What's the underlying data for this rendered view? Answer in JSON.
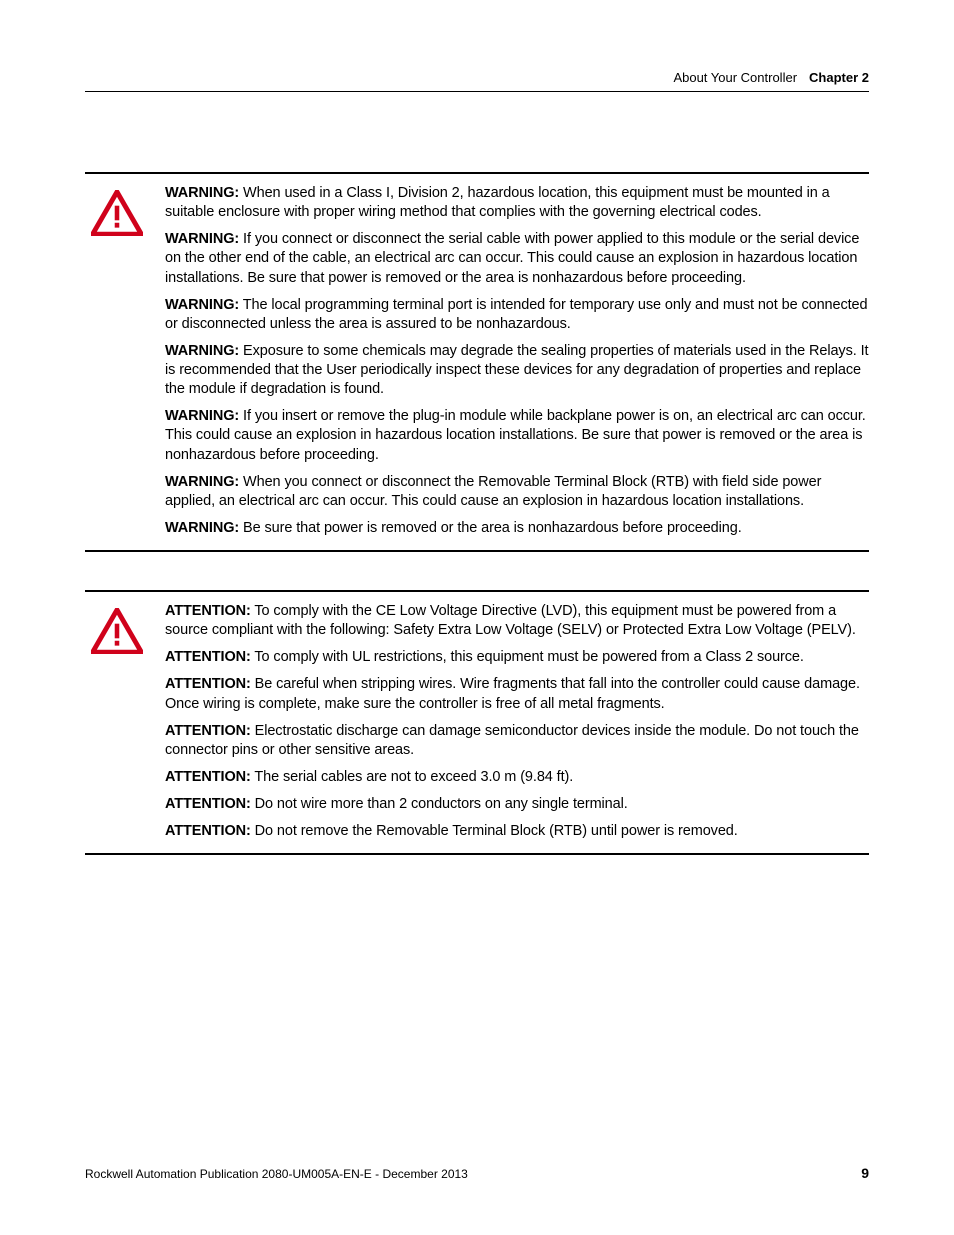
{
  "header": {
    "section_title": "About Your Controller",
    "chapter_label": "Chapter 2"
  },
  "blocks": [
    {
      "icon": "warning-triangle",
      "icon_color": "#d0021b",
      "label": "WARNING:",
      "items": [
        "When used in a Class I, Division 2, hazardous location, this equipment must be mounted in a suitable enclosure with proper wiring method that complies with the governing electrical codes.",
        "If you connect or disconnect the serial cable with power applied to this module or the serial device on the other end of the cable, an electrical arc can occur. This could cause an explosion in hazardous location installations. Be sure that power is removed or the area is nonhazardous before proceeding.",
        "The local programming terminal port is intended for temporary use only and must not be connected or disconnected unless the area is assured to be nonhazardous.",
        "Exposure to some chemicals may degrade the sealing properties of materials used in the Relays. It is recommended that the User periodically inspect these devices for any degradation of properties and replace the module if degradation is found.",
        "If you insert or remove the plug-in module while backplane power is on, an electrical arc can occur. This could cause an explosion in hazardous location installations. Be sure that power is removed or the area is nonhazardous before proceeding.",
        "When you connect or disconnect the Removable Terminal Block (RTB) with field side power applied, an electrical arc can occur. This could cause an explosion in hazardous location installations.",
        "Be sure that power is removed or the area is nonhazardous before proceeding."
      ]
    },
    {
      "icon": "warning-triangle",
      "icon_color": "#d0021b",
      "label": "ATTENTION:",
      "items": [
        "To comply with the CE Low Voltage Directive (LVD), this equipment must be powered from a source compliant with the following: Safety Extra Low Voltage (SELV) or Protected Extra Low Voltage (PELV).",
        "To comply with UL restrictions, this equipment must be powered from a Class 2 source.",
        "Be careful when stripping wires. Wire fragments that fall into the controller could cause damage. Once wiring is complete, make sure the controller is free of all metal fragments.",
        "Electrostatic discharge can damage semiconductor devices inside the module. Do not touch the connector pins or other sensitive areas.",
        "The serial cables are not to exceed 3.0 m (9.84 ft).",
        "Do not wire more than 2 conductors on any single terminal.",
        "Do not remove the Removable Terminal Block (RTB) until power is removed."
      ]
    }
  ],
  "footer": {
    "publication": "Rockwell Automation Publication 2080-UM005A-EN-E - December 2013",
    "page_number": "9"
  },
  "colors": {
    "text": "#000000",
    "rule": "#000000",
    "background": "#ffffff"
  },
  "typography": {
    "body_fontsize_pt": 11,
    "header_fontsize_pt": 10,
    "footer_fontsize_pt": 9,
    "label_weight": 700
  }
}
